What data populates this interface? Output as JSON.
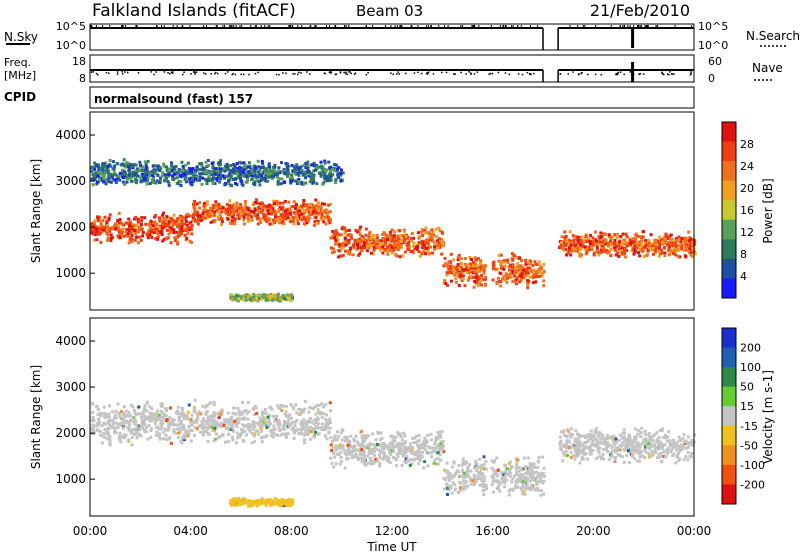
{
  "header": {
    "station": "Falkland Islands (fitACF)",
    "beam": "Beam 03",
    "date": "21/Feb/2010"
  },
  "top_panels": {
    "nsky": {
      "label": "N.Sky",
      "ticks": [
        "10^5",
        "10^0"
      ]
    },
    "nsearch": {
      "label": "N.Search",
      "ticks": [
        "10^5",
        "10^0"
      ]
    },
    "freq": {
      "label_1": "Freq.",
      "label_2": "[MHz]",
      "ticks": [
        "18",
        "8"
      ]
    },
    "nave": {
      "label": "Nave",
      "ticks": [
        "60",
        "0"
      ]
    },
    "cpid": {
      "label": "CPID",
      "value": "normalsound (fast) 157"
    }
  },
  "power_panel": {
    "ylabel": "Slant Range [km]",
    "yticks": [
      "4000",
      "3000",
      "2000",
      "1000"
    ],
    "colorbar_label": "Power [dB]",
    "colorbar_ticks": [
      "28",
      "24",
      "20",
      "16",
      "12",
      "8",
      "4"
    ],
    "colors": [
      "#1a1aff",
      "#1f4fa0",
      "#2e7d5a",
      "#5aa05a",
      "#c8c832",
      "#f0a020",
      "#f07020",
      "#f04010",
      "#e01010"
    ]
  },
  "velocity_panel": {
    "ylabel": "Slant Range [km]",
    "yticks": [
      "4000",
      "3000",
      "2000",
      "1000"
    ],
    "colorbar_label": "Velocity [m s-1]",
    "colorbar_ticks": [
      "200",
      "100",
      "50",
      "15",
      "-15",
      "-50",
      "-100",
      "-200"
    ],
    "colors": [
      "#1a2fd0",
      "#2060b0",
      "#2e8a46",
      "#66cc33",
      "#c4c4c4",
      "#f0c020",
      "#f09020",
      "#f05010",
      "#e01010"
    ]
  },
  "xaxis": {
    "label": "Time UT",
    "ticks": [
      "00:00",
      "04:00",
      "08:00",
      "12:00",
      "16:00",
      "20:00",
      "00:00"
    ]
  },
  "chart_data": [
    {
      "type": "heatmap",
      "name": "power",
      "xlabel": "Time UT",
      "ylabel": "Slant Range [km]",
      "xlim": [
        0,
        24
      ],
      "ylim": [
        200,
        4500
      ],
      "clim": [
        0,
        30
      ],
      "data_gaps_hours": [
        [
          18.0,
          18.6
        ],
        [
          15.7,
          15.9
        ]
      ],
      "bands": [
        {
          "t_start": 0,
          "t_end": 4,
          "r_center": 2000,
          "r_width": 350,
          "value": 26
        },
        {
          "t_start": 4,
          "t_end": 9.5,
          "r_center": 2350,
          "r_width": 300,
          "value": 25
        },
        {
          "t_start": 9.5,
          "t_end": 14,
          "r_center": 1700,
          "r_width": 350,
          "value": 24
        },
        {
          "t_start": 14,
          "t_end": 18,
          "r_center": 1100,
          "r_width": 400,
          "value": 24
        },
        {
          "t_start": 18.6,
          "t_end": 24,
          "r_center": 1650,
          "r_width": 300,
          "value": 24
        },
        {
          "t_start": 0,
          "t_end": 10,
          "r_center": 3200,
          "r_width": 300,
          "value": 6
        },
        {
          "t_start": 5.5,
          "t_end": 8,
          "r_center": 500,
          "r_width": 80,
          "value": 14
        }
      ]
    },
    {
      "type": "heatmap",
      "name": "velocity",
      "xlabel": "Time UT",
      "ylabel": "Slant Range [km]",
      "xlim": [
        0,
        24
      ],
      "ylim": [
        200,
        4500
      ],
      "clim": [
        -250,
        250
      ],
      "data_gaps_hours": [
        [
          18.0,
          18.6
        ],
        [
          15.7,
          15.9
        ]
      ],
      "bands": [
        {
          "t_start": 0,
          "t_end": 9.5,
          "r_center": 2250,
          "r_width": 500,
          "value": 0
        },
        {
          "t_start": 9.5,
          "t_end": 14,
          "r_center": 1700,
          "r_width": 450,
          "value": 0
        },
        {
          "t_start": 14,
          "t_end": 18,
          "r_center": 1100,
          "r_width": 450,
          "value": 0
        },
        {
          "t_start": 18.6,
          "t_end": 24,
          "r_center": 1750,
          "r_width": 400,
          "value": 0
        },
        {
          "t_start": 5.5,
          "t_end": 8,
          "r_center": 530,
          "r_width": 90,
          "value": -60
        }
      ]
    }
  ]
}
